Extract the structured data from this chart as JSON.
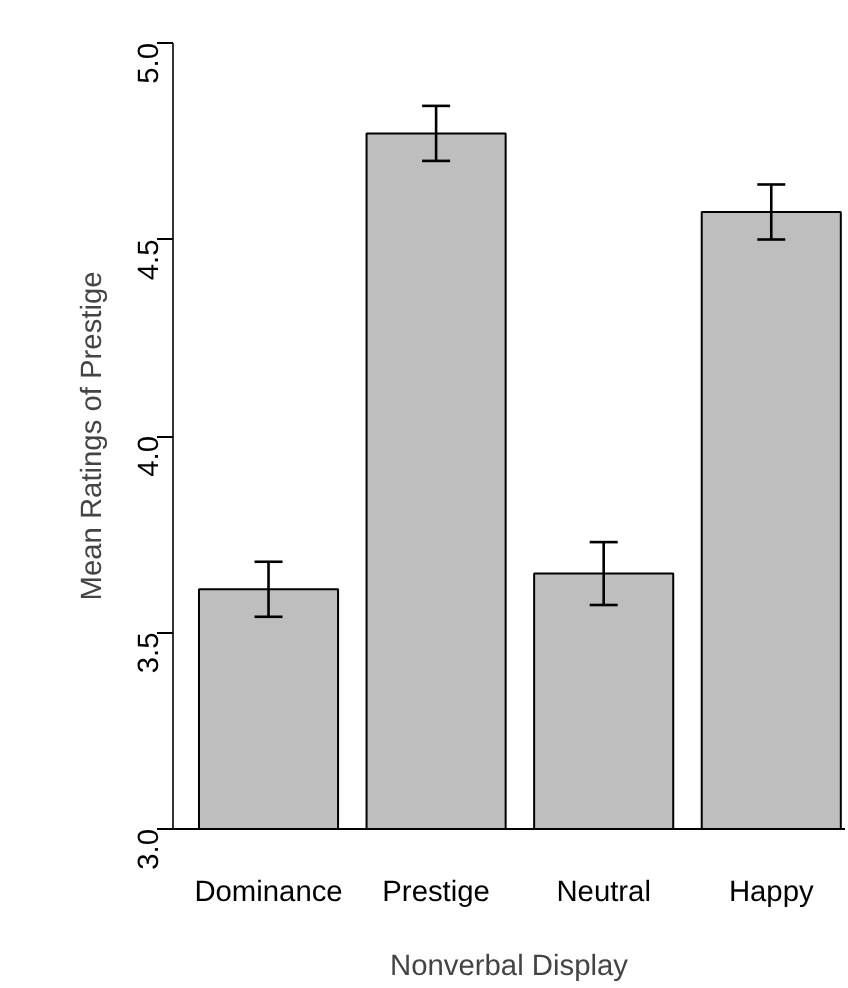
{
  "chart_data": {
    "type": "bar",
    "xlabel": "Nonverbal Display",
    "ylabel": "Mean Ratings of Prestige",
    "categories": [
      "Dominance",
      "Prestige",
      "Neutral",
      "Happy"
    ],
    "values": [
      3.61,
      4.77,
      3.65,
      4.57
    ],
    "errors": [
      0.07,
      0.07,
      0.08,
      0.07
    ],
    "color": "#bebebe",
    "ylim": [
      3.0,
      5.0
    ],
    "yticks": [
      {
        "value": 3.0,
        "label": "3.0"
      },
      {
        "value": 3.5,
        "label": "3.5"
      },
      {
        "value": 4.0,
        "label": "4.0"
      },
      {
        "value": 4.5,
        "label": "4.5"
      },
      {
        "value": 5.0,
        "label": "5.0"
      }
    ],
    "grid": false
  }
}
